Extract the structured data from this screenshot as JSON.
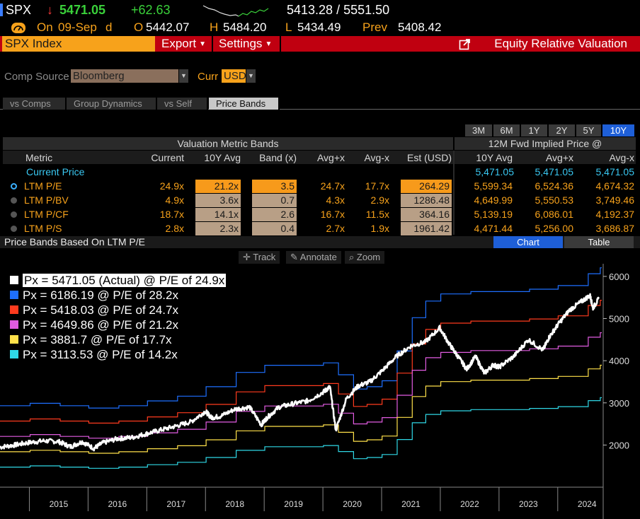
{
  "ticker": {
    "symbol": "SPX",
    "arrow": "↓",
    "last": "5471.05",
    "change": "+62.63",
    "range": "5413.28 / 5551.50",
    "on_label": "On",
    "date": "09-Sep",
    "d": "d",
    "open_label": "O",
    "open": "5442.07",
    "high_label": "H",
    "high": "5484.20",
    "low_label": "L",
    "low": "5434.49",
    "prev_label": "Prev",
    "prev": "5408.42"
  },
  "menubar": {
    "index": "SPX Index",
    "export": "Export",
    "settings": "Settings",
    "title": "Equity Relative Valuation"
  },
  "comp": {
    "source_label": "Comp Source",
    "source_value": "Bloomberg",
    "curr_label": "Curr",
    "curr_value": "USD"
  },
  "tabs": [
    {
      "label": "vs Comps",
      "active": false
    },
    {
      "label": "Group Dynamics",
      "active": false
    },
    {
      "label": "vs Self",
      "active": false
    },
    {
      "label": "Price Bands",
      "active": true
    }
  ],
  "ranges": [
    "3M",
    "6M",
    "1Y",
    "2Y",
    "5Y",
    "10Y"
  ],
  "active_range": "10Y",
  "table": {
    "group1": "Valuation Metric Bands",
    "group2": "12M Fwd Implied Price @",
    "headers": [
      "Metric",
      "Current",
      "10Y Avg",
      "Band (x)",
      "Avg+x",
      "Avg-x",
      "Est (USD)",
      "10Y Avg",
      "Avg+x",
      "Avg-x"
    ],
    "current_price": {
      "label": "Current Price",
      "v1": "5,471.05",
      "v2": "5,471.05",
      "v3": "5,471.05"
    },
    "rows": [
      {
        "metric": "LTM P/E",
        "current": "24.9x",
        "avg": "21.2x",
        "band": "3.5",
        "plus": "24.7x",
        "minus": "17.7x",
        "est": "264.29",
        "p_avg": "5,599.34",
        "p_plus": "6,524.36",
        "p_minus": "4,674.32",
        "selected": true
      },
      {
        "metric": "LTM P/BV",
        "current": "4.9x",
        "avg": "3.6x",
        "band": "0.7",
        "plus": "4.3x",
        "minus": "2.9x",
        "est": "1286.48",
        "p_avg": "4,649.99",
        "p_plus": "5,550.53",
        "p_minus": "3,749.46",
        "selected": false
      },
      {
        "metric": "LTM P/CF",
        "current": "18.7x",
        "avg": "14.1x",
        "band": "2.6",
        "plus": "16.7x",
        "minus": "11.5x",
        "est": "364.16",
        "p_avg": "5,139.19",
        "p_plus": "6,086.01",
        "p_minus": "4,192.37",
        "selected": false
      },
      {
        "metric": "LTM P/S",
        "current": "2.8x",
        "avg": "2.3x",
        "band": "0.4",
        "plus": "2.7x",
        "minus": "1.9x",
        "est": "1961.42",
        "p_avg": "4,471.44",
        "p_plus": "5,256.00",
        "p_minus": "3,686.87",
        "selected": false
      }
    ]
  },
  "price_bands": {
    "title": "Price Bands Based On LTM P/E",
    "chart_btn": "Chart",
    "table_btn": "Table"
  },
  "tools": {
    "track": "Track",
    "annotate": "Annotate",
    "zoom": "Zoom"
  },
  "colors": {
    "actual": "#ffffff",
    "plus2": "#1e6fff",
    "plus1": "#ff3b1e",
    "avg": "#e25ce2",
    "minus1": "#ffe14a",
    "minus2": "#2fd8e6"
  },
  "chart_data": {
    "type": "line",
    "y_ticks": [
      "6000",
      "5000",
      "4000",
      "3000",
      "2000"
    ],
    "ylim": [
      1000,
      6300
    ],
    "x_labels": [
      "2015",
      "2016",
      "2017",
      "2018",
      "2019",
      "2020",
      "2021",
      "2022",
      "2023",
      "2024"
    ],
    "xlim": [
      2014.5,
      2024.75
    ],
    "legend": [
      {
        "key": "actual",
        "text": "Px = 5471.05 (Actual) @ P/E of 24.9x"
      },
      {
        "key": "plus2",
        "text": "Px = 6186.19 @ P/E of 28.2x"
      },
      {
        "key": "plus1",
        "text": "Px = 5418.03 @ P/E of 24.7x"
      },
      {
        "key": "avg",
        "text": "Px = 4649.86 @ P/E of 21.2x"
      },
      {
        "key": "minus1",
        "text": "Px = 3881.7 @ P/E of 17.7x"
      },
      {
        "key": "minus2",
        "text": "Px = 3113.53 @ P/E of 14.2x"
      }
    ],
    "eps_x": [
      2014.5,
      2015.0,
      2015.5,
      2016.0,
      2016.5,
      2017.0,
      2017.5,
      2018.0,
      2018.5,
      2019.0,
      2019.5,
      2020.0,
      2020.25,
      2020.5,
      2020.75,
      2021.0,
      2021.25,
      2021.5,
      2021.75,
      2022.0,
      2022.5,
      2023.0,
      2023.5,
      2024.0,
      2024.5,
      2024.7
    ],
    "eps": [
      104,
      106,
      104,
      102,
      104,
      108,
      112,
      120,
      132,
      138,
      138,
      140,
      130,
      118,
      120,
      125,
      150,
      178,
      192,
      198,
      200,
      200,
      202,
      205,
      215,
      220
    ],
    "price_x": [
      2014.5,
      2014.75,
      2015.0,
      2015.25,
      2015.5,
      2015.7,
      2015.9,
      2016.1,
      2016.25,
      2016.5,
      2016.75,
      2017.0,
      2017.25,
      2017.5,
      2017.75,
      2018.0,
      2018.1,
      2018.25,
      2018.5,
      2018.75,
      2018.95,
      2019.05,
      2019.25,
      2019.5,
      2019.75,
      2020.0,
      2020.12,
      2020.22,
      2020.4,
      2020.6,
      2020.8,
      2021.0,
      2021.25,
      2021.5,
      2021.75,
      2021.99,
      2022.15,
      2022.3,
      2022.45,
      2022.6,
      2022.75,
      2022.9,
      2023.0,
      2023.25,
      2023.5,
      2023.75,
      2023.85,
      2024.0,
      2024.2,
      2024.4,
      2024.55,
      2024.6,
      2024.7
    ],
    "price": [
      1950,
      2000,
      2060,
      2100,
      2080,
      1960,
      2080,
      1920,
      2050,
      2150,
      2180,
      2270,
      2360,
      2450,
      2550,
      2800,
      2650,
      2680,
      2850,
      2900,
      2480,
      2650,
      2900,
      2980,
      3050,
      3250,
      3380,
      2350,
      3100,
      3400,
      3500,
      3750,
      4100,
      4350,
      4450,
      4780,
      4400,
      4100,
      3800,
      4100,
      3700,
      3900,
      3850,
      4100,
      4500,
      4250,
      4550,
      4850,
      5200,
      5400,
      5550,
      5250,
      5471
    ]
  }
}
